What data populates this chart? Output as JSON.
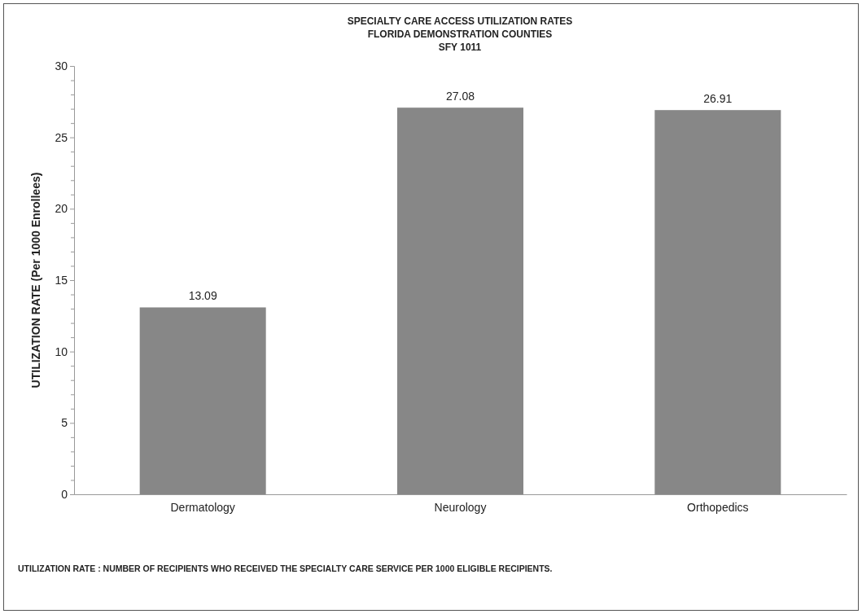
{
  "chart_data": {
    "type": "bar",
    "title": "SPECIALTY CARE ACCESS UTILIZATION RATES\nFLORIDA DEMONSTRATION COUNTIES\nSFY 1011",
    "ylabel": "UTILIZATION RATE (Per 1000 Enrollees)",
    "categories": [
      "Dermatology",
      "Neurology",
      "Orthopedics"
    ],
    "values": [
      13.09,
      27.08,
      26.91
    ],
    "color": "#878787",
    "data_labels": true,
    "ylim": [
      0,
      30
    ],
    "yticks": [
      0,
      {
        "value": 1,
        "label": null
      },
      {
        "value": 2,
        "label": null
      },
      {
        "value": 3,
        "label": null
      },
      {
        "value": 4,
        "label": null
      },
      5,
      {
        "value": 6,
        "label": null
      },
      {
        "value": 7,
        "label": null
      },
      {
        "value": 8,
        "label": null
      },
      {
        "value": 9,
        "label": null
      },
      10,
      {
        "value": 11,
        "label": null
      },
      {
        "value": 12,
        "label": null
      },
      {
        "value": 13,
        "label": null
      },
      {
        "value": 14,
        "label": null
      },
      15,
      {
        "value": 16,
        "label": null
      },
      {
        "value": 17,
        "label": null
      },
      {
        "value": 18,
        "label": null
      },
      {
        "value": 19,
        "label": null
      },
      20,
      {
        "value": 21,
        "label": null
      },
      {
        "value": 22,
        "label": null
      },
      {
        "value": 23,
        "label": null
      },
      {
        "value": 24,
        "label": null
      },
      25,
      {
        "value": 26,
        "label": null
      },
      {
        "value": 27,
        "label": null
      },
      {
        "value": 28,
        "label": null
      },
      {
        "value": 29,
        "label": null
      },
      30
    ],
    "grid": false,
    "annotations": [
      "UTILIZATION RATE : NUMBER OF RECIPIENTS WHO RECEIVED THE SPECIALTY CARE SERVICE PER 1000 ELIGIBLE RECIPIENTS."
    ]
  }
}
